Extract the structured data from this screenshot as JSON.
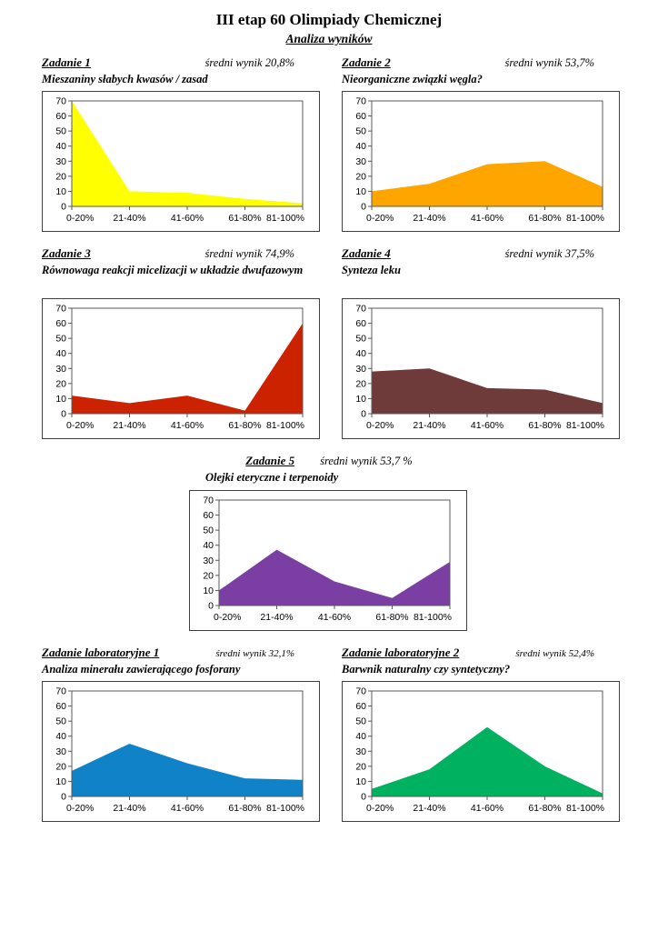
{
  "page": {
    "title": "III etap 60 Olimpiady Chemicznej",
    "subtitle": "Analiza wyników"
  },
  "axis": {
    "ylim": [
      0,
      70
    ],
    "y_ticks": [
      0,
      10,
      20,
      30,
      40,
      50,
      60,
      70
    ],
    "grid": false,
    "legend": "none"
  },
  "chart_data": [
    {
      "type": "area",
      "heading": "Zadanie 1",
      "score_label": "średni wynik 20,8%",
      "title": "Mieszaniny słabych kwasów / zasad",
      "categories": [
        "0-20%",
        "21-40%",
        "41-60%",
        "61-80%",
        "81-100%"
      ],
      "values": [
        70,
        10,
        9,
        5,
        2
      ],
      "color": "#FFFF00",
      "ylim": [
        0,
        70
      ]
    },
    {
      "type": "area",
      "heading": "Zadanie 2",
      "score_label": "średni wynik 53,7%",
      "title": "Nieorganiczne związki węgla?",
      "categories": [
        "0-20%",
        "21-40%",
        "41-60%",
        "61-80%",
        "81-100%"
      ],
      "values": [
        10,
        15,
        28,
        30,
        13
      ],
      "color": "#FFA500",
      "ylim": [
        0,
        70
      ]
    },
    {
      "type": "area",
      "heading": "Zadanie 3",
      "score_label": "średni wynik 74,9%",
      "title": "Równowaga reakcji micelizacji w układzie dwufazowym",
      "categories": [
        "0-20%",
        "21-40%",
        "41-60%",
        "61-80%",
        "81-100%"
      ],
      "values": [
        12,
        7,
        12,
        2,
        60
      ],
      "color": "#CC2200",
      "ylim": [
        0,
        70
      ]
    },
    {
      "type": "area",
      "heading": "Zadanie 4",
      "score_label": "średni wynik 37,5%",
      "title": "Synteza leku",
      "categories": [
        "0-20%",
        "21-40%",
        "41-60%",
        "61-80%",
        "81-100%"
      ],
      "values": [
        28,
        30,
        17,
        16,
        7
      ],
      "color": "#6E3A3A",
      "ylim": [
        0,
        70
      ]
    },
    {
      "type": "area",
      "heading": "Zadanie 5",
      "score_label": "średni wynik 53,7 %",
      "title": "Olejki eteryczne i terpenoidy",
      "categories": [
        "0-20%",
        "21-40%",
        "41-60%",
        "61-80%",
        "81-100%"
      ],
      "values": [
        10,
        37,
        16,
        5,
        29
      ],
      "color": "#7B3FA3",
      "ylim": [
        0,
        70
      ]
    },
    {
      "type": "area",
      "heading": "Zadanie laboratoryjne 1",
      "score_label": "średni wynik 32,1%",
      "title": "Analiza minerału zawierającego fosforany",
      "categories": [
        "0-20%",
        "21-40%",
        "41-60%",
        "61-80%",
        "81-100%"
      ],
      "values": [
        17,
        35,
        22,
        12,
        11
      ],
      "color": "#0F82C8",
      "ylim": [
        0,
        70
      ]
    },
    {
      "type": "area",
      "heading": "Zadanie laboratoryjne 2",
      "score_label": "średni wynik 52,4%",
      "title": "Barwnik naturalny czy syntetyczny?",
      "categories": [
        "0-20%",
        "21-40%",
        "41-60%",
        "61-80%",
        "81-100%"
      ],
      "values": [
        5,
        18,
        46,
        20,
        2
      ],
      "color": "#00B25F",
      "ylim": [
        0,
        70
      ]
    }
  ]
}
